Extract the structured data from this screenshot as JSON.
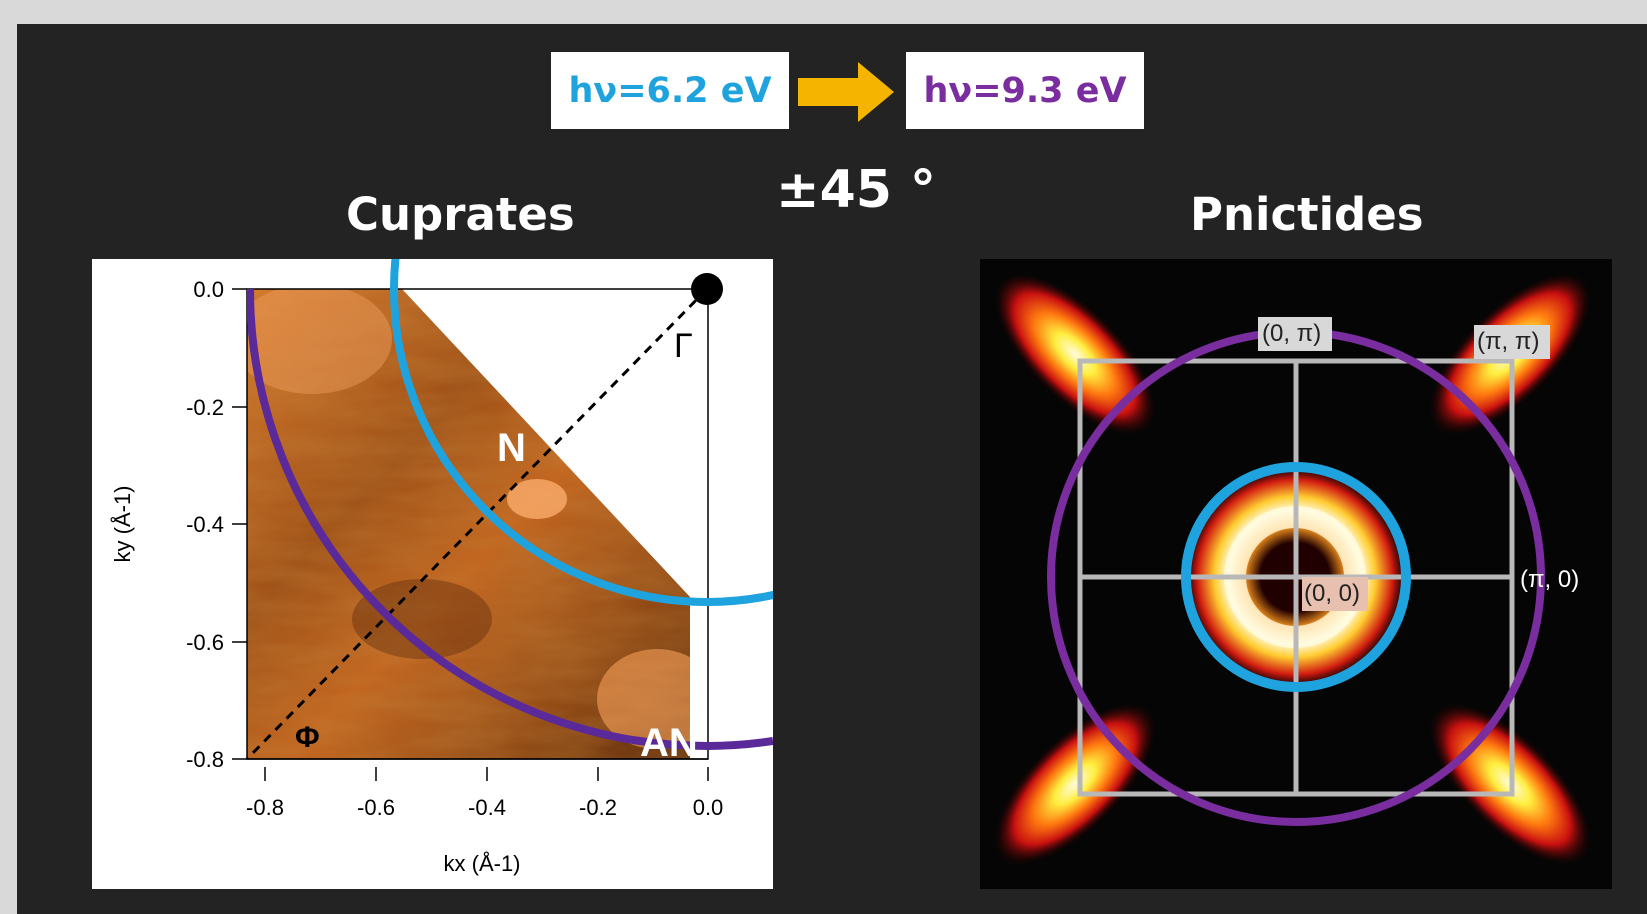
{
  "header": {
    "photon_low": "hν=6.2 eV",
    "photon_high": "hν=9.3 eV",
    "rotation": "±45 °",
    "color_low": "#1ea3de",
    "color_high": "#7a2d9e",
    "arrow_color": "#f5b400"
  },
  "cuprates": {
    "title": "Cuprates",
    "xlabel": "kx (Å-1)",
    "ylabel": "ky (Å-1)",
    "x_ticks": [
      "-0.8",
      "-0.6",
      "-0.4",
      "-0.2",
      "0.0"
    ],
    "y_ticks": [
      "0.0",
      "-0.2",
      "-0.4",
      "-0.6",
      "-0.8"
    ],
    "point_gamma": "Γ",
    "point_phi": "Φ",
    "label_node": "N",
    "label_antinode": "AN"
  },
  "pnictides": {
    "title": "Pnictides",
    "label_0pi": "(0, π)",
    "label_pipi": "(π, π)",
    "label_pi0": "(π, 0)",
    "label_00": "(0, 0)"
  },
  "chart_data": {
    "type": "heatmap",
    "xlabel": "kx (Å-1)",
    "ylabel": "ky (Å-1)",
    "xlim": [
      -0.8,
      0.0
    ],
    "ylim": [
      -0.8,
      0.0
    ],
    "x_ticks": [
      -0.8,
      -0.6,
      -0.4,
      -0.2,
      0.0
    ],
    "y_ticks": [
      0.0,
      -0.2,
      -0.4,
      -0.6,
      -0.8
    ],
    "gamma_point": [
      0.0,
      0.0
    ],
    "cut_line": {
      "from": [
        0.0,
        0.0
      ],
      "to": [
        -0.8,
        -0.8
      ]
    }
  }
}
